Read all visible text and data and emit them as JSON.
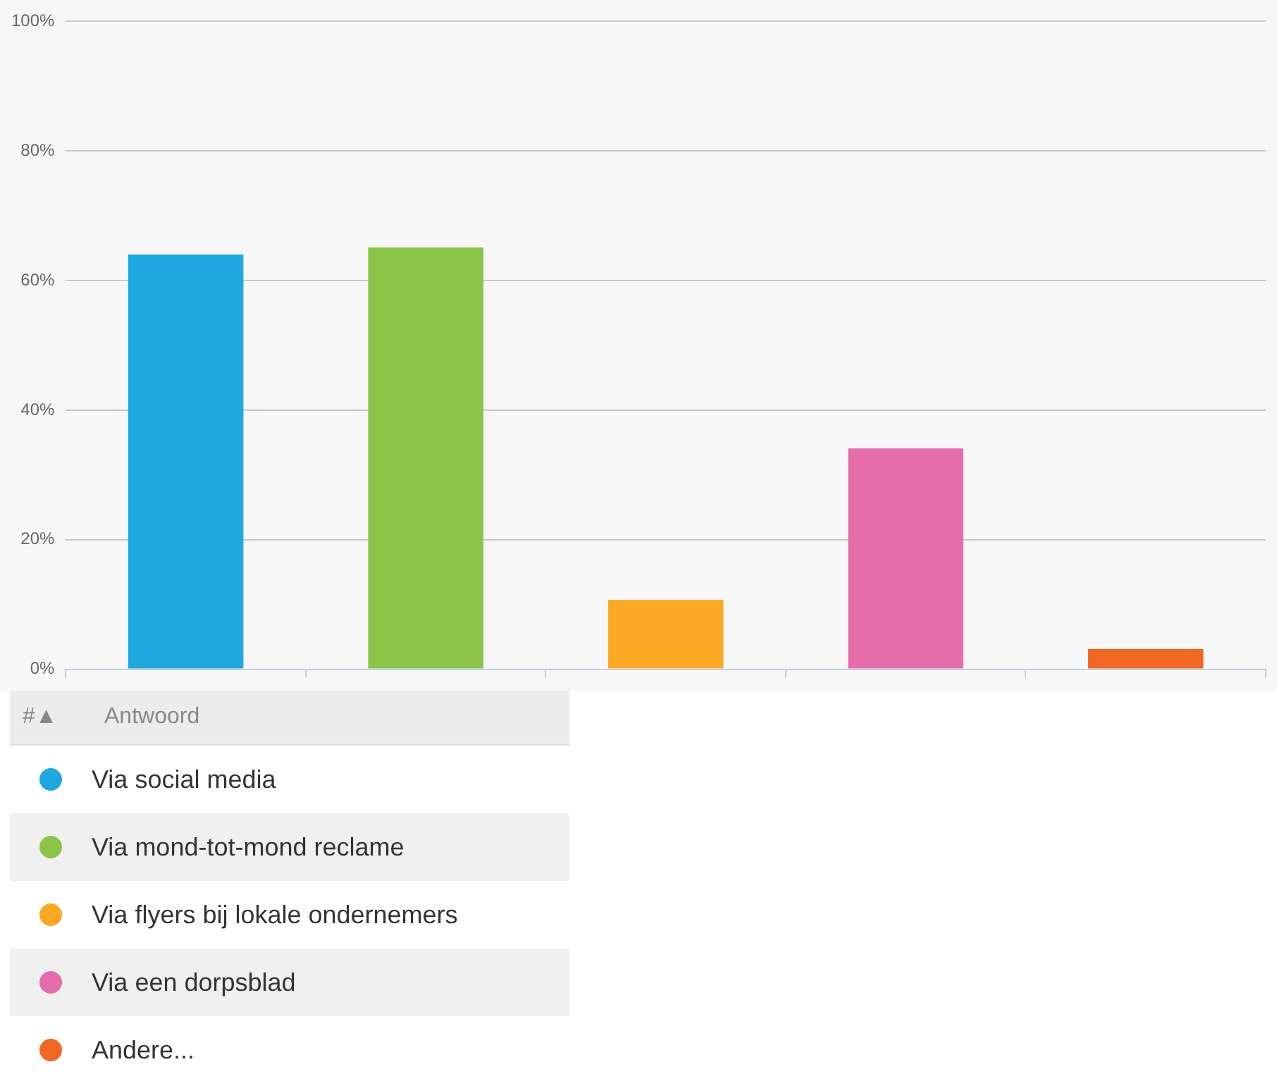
{
  "chart_data": {
    "type": "bar",
    "categories": [
      null,
      null,
      null,
      null,
      null
    ],
    "series": [
      {
        "name": "Via social media",
        "color": "#1ea8e0",
        "values": [
          64,
          null,
          null,
          null,
          null
        ]
      },
      {
        "name": "Via mond-tot-mond reclame",
        "color": "#8ac547",
        "values": [
          null,
          65.1,
          null,
          null,
          null
        ]
      },
      {
        "name": "Via flyers bij lokale ondernemers",
        "color": "#fba922",
        "values": [
          null,
          null,
          10.7,
          null,
          null
        ]
      },
      {
        "name": "Via een dorpsblad",
        "color": "#e66dab",
        "values": [
          null,
          null,
          null,
          34.1,
          null
        ]
      },
      {
        "name": "Andere...",
        "color": "#f26722",
        "values": [
          null,
          null,
          null,
          null,
          3.1
        ]
      }
    ],
    "ylim": [
      0,
      100
    ],
    "yticks": [
      {
        "value": 0,
        "label": "0%"
      },
      {
        "value": 20,
        "label": "20%"
      },
      {
        "value": 40,
        "label": "40%"
      },
      {
        "value": 60,
        "label": "60%"
      },
      {
        "value": 80,
        "label": "80%"
      },
      {
        "value": 100,
        "label": "100%"
      }
    ],
    "grid": "y",
    "tick_labels": "y",
    "legend": "bottom left",
    "legend_title": "Antwoord",
    "annotations": [
      "#▲"
    ]
  }
}
